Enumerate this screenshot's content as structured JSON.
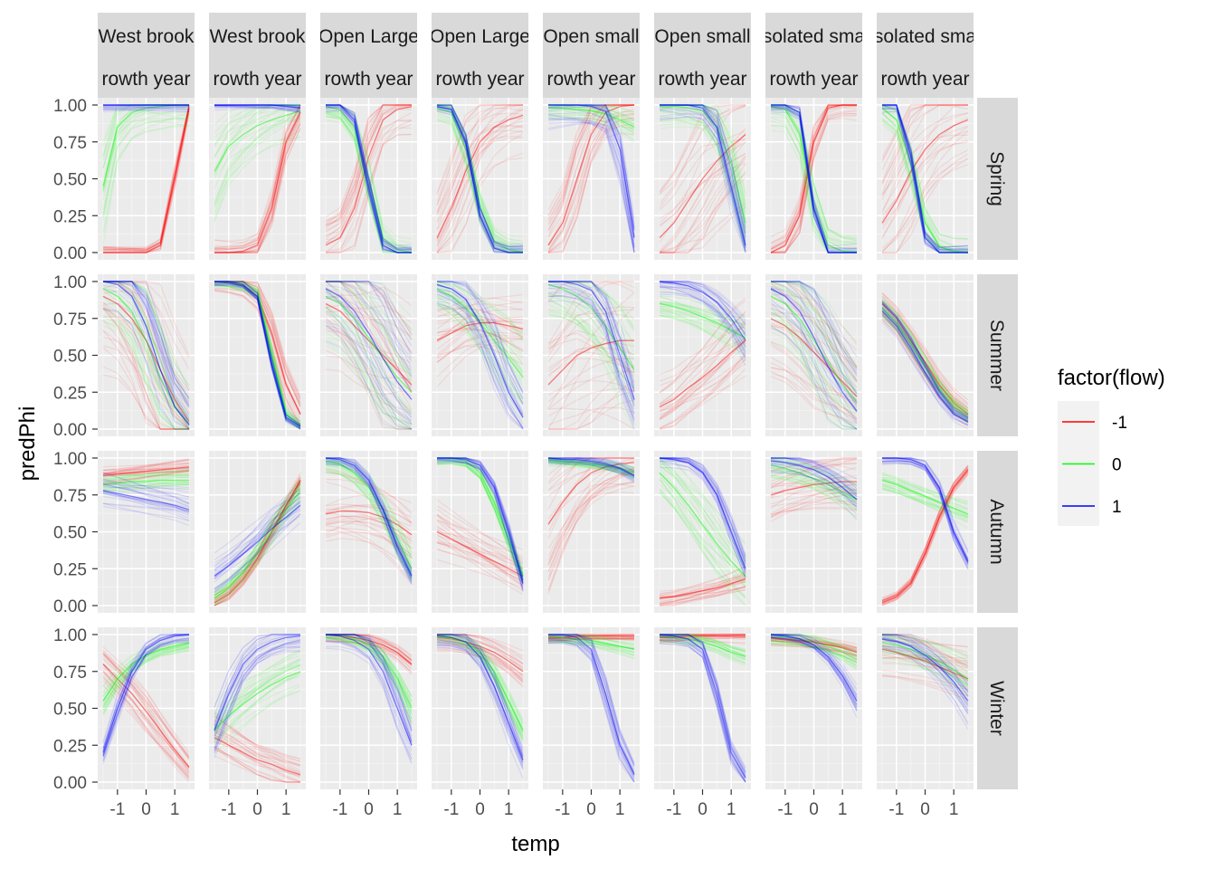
{
  "chart_data": {
    "type": "line",
    "xlabel": "temp",
    "ylabel": "predPhi",
    "xlim": [
      -1.5,
      1.5
    ],
    "ylim": [
      0,
      1
    ],
    "x_ticks": [
      "-1",
      "0",
      "1"
    ],
    "y_ticks": [
      "0.00",
      "0.25",
      "0.50",
      "0.75",
      "1.00"
    ],
    "grid": true,
    "legend": {
      "title": "factor(flow)",
      "placement": "right",
      "entries": [
        {
          "label": "-1",
          "color": "#ff0000"
        },
        {
          "label": "0",
          "color": "#00ff00"
        },
        {
          "label": "1",
          "color": "#0000ff"
        }
      ]
    },
    "col_strips": [
      {
        "line1": "West brook",
        "line2": "rowth year"
      },
      {
        "line1": "West brook",
        "line2": "rowth year"
      },
      {
        "line1": "Open Large",
        "line2": "rowth year"
      },
      {
        "line1": "Open Large",
        "line2": "rowth year"
      },
      {
        "line1": "Open small",
        "line2": "rowth year"
      },
      {
        "line1": "Open small",
        "line2": "rowth year"
      },
      {
        "line1": "solated sma",
        "line2": "rowth year"
      },
      {
        "line1": "solated sma",
        "line2": "rowth year"
      }
    ],
    "row_strips": [
      "Spring",
      "Summer",
      "Autumn",
      "Winter"
    ],
    "x": [
      -1.5,
      -1.0,
      -0.5,
      0.0,
      0.5,
      1.0,
      1.5
    ],
    "panels": [
      [
        {
          "-1": [
            0,
            0,
            0,
            0,
            0.05,
            0.5,
            0.98
          ],
          "0": [
            0.45,
            0.85,
            0.95,
            0.98,
            0.99,
            1,
            1
          ],
          "1": [
            1,
            1,
            1,
            1,
            1,
            1,
            1
          ],
          "spread": [
            0.05,
            0.2,
            0.05
          ]
        },
        {
          "-1": [
            0,
            0,
            0.01,
            0.05,
            0.3,
            0.75,
            0.95
          ],
          "0": [
            0.55,
            0.72,
            0.8,
            0.86,
            0.9,
            0.93,
            0.96
          ],
          "1": [
            1,
            1,
            1,
            1,
            1,
            0.99,
            0.98
          ],
          "spread": [
            0.1,
            0.2,
            0.03
          ]
        },
        {
          "-1": [
            0.05,
            0.1,
            0.3,
            0.65,
            0.9,
            0.97,
            0.99
          ],
          "0": [
            0.99,
            0.97,
            0.85,
            0.5,
            0.1,
            0.02,
            0
          ],
          "1": [
            1,
            1,
            0.9,
            0.45,
            0.05,
            0,
            0
          ],
          "spread": [
            0.2,
            0.1,
            0.05
          ]
        },
        {
          "-1": [
            0.1,
            0.3,
            0.55,
            0.75,
            0.85,
            0.9,
            0.93
          ],
          "0": [
            0.98,
            0.95,
            0.7,
            0.3,
            0.08,
            0.02,
            0
          ],
          "1": [
            0.99,
            0.97,
            0.75,
            0.25,
            0.03,
            0,
            0
          ],
          "spread": [
            0.25,
            0.1,
            0.05
          ]
        },
        {
          "-1": [
            0.05,
            0.2,
            0.5,
            0.8,
            0.95,
            0.99,
            1
          ],
          "0": [
            0.98,
            0.98,
            0.97,
            0.96,
            0.94,
            0.9,
            0.85
          ],
          "1": [
            1,
            1,
            1,
            0.99,
            0.96,
            0.7,
            0.1
          ],
          "spread": [
            0.2,
            0.08,
            0.15
          ]
        },
        {
          "-1": [
            0.1,
            0.2,
            0.35,
            0.5,
            0.62,
            0.72,
            0.8
          ],
          "0": [
            0.99,
            0.99,
            0.98,
            0.96,
            0.85,
            0.6,
            0.2
          ],
          "1": [
            1,
            1,
            1,
            0.98,
            0.85,
            0.45,
            0.05
          ],
          "spread": [
            0.3,
            0.15,
            0.1
          ]
        },
        {
          "-1": [
            0,
            0.05,
            0.25,
            0.75,
            0.98,
            1,
            1
          ],
          "0": [
            0.99,
            0.97,
            0.8,
            0.3,
            0.05,
            0.01,
            0
          ],
          "1": [
            1,
            1,
            0.95,
            0.3,
            0,
            0,
            0
          ],
          "spread": [
            0.1,
            0.15,
            0.05
          ]
        },
        {
          "-1": [
            0.2,
            0.35,
            0.55,
            0.7,
            0.8,
            0.86,
            0.9
          ],
          "0": [
            0.98,
            0.9,
            0.6,
            0.2,
            0.04,
            0.01,
            0
          ],
          "1": [
            1,
            1,
            0.65,
            0.1,
            0,
            0,
            0
          ],
          "spread": [
            0.3,
            0.1,
            0.05
          ]
        }
      ],
      [
        {
          "-1": [
            0.9,
            0.85,
            0.75,
            0.6,
            0.4,
            0.2,
            0.05
          ],
          "0": [
            0.95,
            0.9,
            0.8,
            0.6,
            0.35,
            0.15,
            0.03
          ],
          "1": [
            1,
            0.98,
            0.9,
            0.7,
            0.4,
            0.15,
            0.03
          ],
          "spread": [
            0.4,
            0.25,
            0.25
          ]
        },
        {
          "-1": [
            1,
            0.99,
            0.97,
            0.9,
            0.65,
            0.3,
            0.1
          ],
          "0": [
            1,
            0.99,
            0.97,
            0.92,
            0.5,
            0.1,
            0.02
          ],
          "1": [
            1,
            1,
            0.98,
            0.9,
            0.45,
            0.08,
            0.02
          ],
          "spread": [
            0.1,
            0.05,
            0.03
          ]
        },
        {
          "-1": [
            0.85,
            0.8,
            0.7,
            0.6,
            0.5,
            0.4,
            0.3
          ],
          "0": [
            0.9,
            0.85,
            0.75,
            0.62,
            0.48,
            0.35,
            0.25
          ],
          "1": [
            0.95,
            0.9,
            0.8,
            0.65,
            0.48,
            0.32,
            0.2
          ],
          "spread": [
            0.35,
            0.3,
            0.3
          ]
        },
        {
          "-1": [
            0.6,
            0.65,
            0.7,
            0.72,
            0.72,
            0.7,
            0.68
          ],
          "0": [
            0.95,
            0.9,
            0.82,
            0.72,
            0.6,
            0.48,
            0.35
          ],
          "1": [
            0.98,
            0.95,
            0.88,
            0.72,
            0.5,
            0.25,
            0.08
          ],
          "spread": [
            0.15,
            0.15,
            0.15
          ]
        },
        {
          "-1": [
            0.3,
            0.4,
            0.5,
            0.55,
            0.58,
            0.6,
            0.6
          ],
          "0": [
            0.98,
            0.95,
            0.9,
            0.82,
            0.7,
            0.55,
            0.4
          ],
          "1": [
            1,
            1,
            0.98,
            0.94,
            0.8,
            0.5,
            0.2
          ],
          "spread": [
            0.35,
            0.2,
            0.15
          ]
        },
        {
          "-1": [
            0.15,
            0.2,
            0.28,
            0.35,
            0.43,
            0.52,
            0.6
          ],
          "0": [
            0.85,
            0.83,
            0.8,
            0.76,
            0.72,
            0.67,
            0.62
          ],
          "1": [
            1,
            0.99,
            0.97,
            0.93,
            0.86,
            0.75,
            0.6
          ],
          "spread": [
            0.15,
            0.08,
            0.08
          ]
        },
        {
          "-1": [
            0.75,
            0.7,
            0.62,
            0.52,
            0.42,
            0.32,
            0.22
          ],
          "0": [
            0.9,
            0.85,
            0.75,
            0.6,
            0.45,
            0.3,
            0.18
          ],
          "1": [
            0.95,
            0.9,
            0.8,
            0.62,
            0.42,
            0.25,
            0.12
          ],
          "spread": [
            0.25,
            0.25,
            0.25
          ]
        },
        {
          "-1": [
            0.85,
            0.75,
            0.6,
            0.45,
            0.3,
            0.18,
            0.1
          ],
          "0": [
            0.82,
            0.72,
            0.58,
            0.42,
            0.27,
            0.15,
            0.08
          ],
          "1": [
            0.8,
            0.7,
            0.55,
            0.38,
            0.22,
            0.1,
            0.05
          ],
          "spread": [
            0.08,
            0.05,
            0.05
          ]
        }
      ],
      [
        {
          "-1": [
            0.88,
            0.89,
            0.9,
            0.91,
            0.92,
            0.93,
            0.94
          ],
          "0": [
            0.82,
            0.83,
            0.84,
            0.84,
            0.85,
            0.85,
            0.85
          ],
          "1": [
            0.78,
            0.76,
            0.74,
            0.72,
            0.7,
            0.68,
            0.65
          ],
          "spread": [
            0.05,
            0.05,
            0.08
          ]
        },
        {
          "-1": [
            0.02,
            0.08,
            0.18,
            0.32,
            0.5,
            0.68,
            0.85
          ],
          "0": [
            0.05,
            0.12,
            0.22,
            0.35,
            0.5,
            0.65,
            0.78
          ],
          "1": [
            0.2,
            0.27,
            0.35,
            0.43,
            0.52,
            0.6,
            0.68
          ],
          "spread": [
            0.04,
            0.05,
            0.1
          ]
        },
        {
          "-1": [
            0.62,
            0.64,
            0.64,
            0.63,
            0.6,
            0.55,
            0.48
          ],
          "0": [
            0.98,
            0.96,
            0.9,
            0.8,
            0.65,
            0.45,
            0.25
          ],
          "1": [
            1,
            0.99,
            0.95,
            0.85,
            0.65,
            0.4,
            0.2
          ],
          "spread": [
            0.15,
            0.08,
            0.05
          ]
        },
        {
          "-1": [
            0.5,
            0.45,
            0.4,
            0.35,
            0.3,
            0.25,
            0.2
          ],
          "0": [
            1,
            1,
            0.98,
            0.9,
            0.7,
            0.45,
            0.2
          ],
          "1": [
            1,
            1,
            0.99,
            0.95,
            0.8,
            0.5,
            0.15
          ],
          "spread": [
            0.12,
            0.04,
            0.04
          ]
        },
        {
          "-1": [
            0.55,
            0.7,
            0.82,
            0.9,
            0.94,
            0.96,
            0.97
          ],
          "0": [
            0.99,
            0.98,
            0.97,
            0.96,
            0.95,
            0.93,
            0.9
          ],
          "1": [
            1,
            0.99,
            0.99,
            0.98,
            0.96,
            0.93,
            0.88
          ],
          "spread": [
            0.25,
            0.04,
            0.04
          ]
        },
        {
          "-1": [
            0.05,
            0.06,
            0.08,
            0.1,
            0.12,
            0.15,
            0.18
          ],
          "0": [
            0.9,
            0.8,
            0.68,
            0.55,
            0.42,
            0.3,
            0.2
          ],
          "1": [
            1,
            0.99,
            0.97,
            0.9,
            0.75,
            0.5,
            0.25
          ],
          "spread": [
            0.06,
            0.15,
            0.06
          ]
        },
        {
          "-1": [
            0.75,
            0.78,
            0.8,
            0.82,
            0.83,
            0.84,
            0.84
          ],
          "0": [
            0.95,
            0.93,
            0.9,
            0.86,
            0.82,
            0.77,
            0.72
          ],
          "1": [
            0.98,
            0.97,
            0.95,
            0.92,
            0.87,
            0.8,
            0.72
          ],
          "spread": [
            0.15,
            0.08,
            0.08
          ]
        },
        {
          "-1": [
            0.02,
            0.06,
            0.15,
            0.35,
            0.6,
            0.8,
            0.92
          ],
          "0": [
            0.85,
            0.82,
            0.78,
            0.74,
            0.7,
            0.66,
            0.62
          ],
          "1": [
            1,
            1,
            0.99,
            0.95,
            0.8,
            0.5,
            0.3
          ],
          "spread": [
            0.03,
            0.05,
            0.04
          ]
        }
      ],
      [
        {
          "-1": [
            0.8,
            0.7,
            0.6,
            0.48,
            0.35,
            0.22,
            0.1
          ],
          "0": [
            0.55,
            0.7,
            0.8,
            0.86,
            0.9,
            0.92,
            0.94
          ],
          "1": [
            0.2,
            0.5,
            0.75,
            0.9,
            0.96,
            0.99,
            1
          ],
          "spread": [
            0.1,
            0.05,
            0.05
          ]
        },
        {
          "-1": [
            0.3,
            0.25,
            0.2,
            0.15,
            0.12,
            0.08,
            0.05
          ],
          "0": [
            0.35,
            0.45,
            0.53,
            0.6,
            0.66,
            0.71,
            0.75
          ],
          "1": [
            0.35,
            0.6,
            0.8,
            0.9,
            0.95,
            0.98,
            0.99
          ],
          "spread": [
            0.1,
            0.1,
            0.1
          ]
        },
        {
          "-1": [
            1,
            0.99,
            0.98,
            0.96,
            0.93,
            0.88,
            0.8
          ],
          "0": [
            1,
            0.99,
            0.97,
            0.93,
            0.85,
            0.7,
            0.5
          ],
          "1": [
            1,
            0.99,
            0.96,
            0.9,
            0.75,
            0.5,
            0.25
          ],
          "spread": [
            0.05,
            0.05,
            0.1
          ]
        },
        {
          "-1": [
            0.98,
            0.97,
            0.95,
            0.92,
            0.88,
            0.82,
            0.75
          ],
          "0": [
            0.99,
            0.98,
            0.95,
            0.88,
            0.75,
            0.55,
            0.35
          ],
          "1": [
            0.99,
            0.98,
            0.95,
            0.85,
            0.65,
            0.4,
            0.15
          ],
          "spread": [
            0.08,
            0.05,
            0.08
          ]
        },
        {
          "-1": [
            0.98,
            0.98,
            0.99,
            0.99,
            0.99,
            0.99,
            0.99
          ],
          "0": [
            0.99,
            0.98,
            0.97,
            0.96,
            0.94,
            0.92,
            0.9
          ],
          "1": [
            1,
            1,
            0.98,
            0.9,
            0.6,
            0.25,
            0.05
          ],
          "spread": [
            0.03,
            0.05,
            0.08
          ]
        },
        {
          "-1": [
            0.98,
            0.98,
            0.99,
            0.99,
            0.99,
            0.99,
            0.99
          ],
          "0": [
            0.99,
            0.98,
            0.97,
            0.95,
            0.92,
            0.88,
            0.85
          ],
          "1": [
            1,
            0.99,
            0.97,
            0.9,
            0.6,
            0.2,
            0.03
          ],
          "spread": [
            0.05,
            0.05,
            0.06
          ]
        },
        {
          "-1": [
            0.98,
            0.97,
            0.96,
            0.95,
            0.93,
            0.91,
            0.88
          ],
          "0": [
            0.99,
            0.98,
            0.97,
            0.95,
            0.92,
            0.88,
            0.83
          ],
          "1": [
            1,
            0.99,
            0.97,
            0.93,
            0.85,
            0.72,
            0.55
          ],
          "spread": [
            0.05,
            0.05,
            0.05
          ]
        },
        {
          "-1": [
            0.9,
            0.88,
            0.85,
            0.82,
            0.78,
            0.74,
            0.7
          ],
          "0": [
            0.95,
            0.93,
            0.9,
            0.86,
            0.82,
            0.76,
            0.7
          ],
          "1": [
            0.97,
            0.95,
            0.92,
            0.86,
            0.78,
            0.68,
            0.55
          ],
          "spread": [
            0.15,
            0.1,
            0.1
          ]
        }
      ]
    ]
  }
}
